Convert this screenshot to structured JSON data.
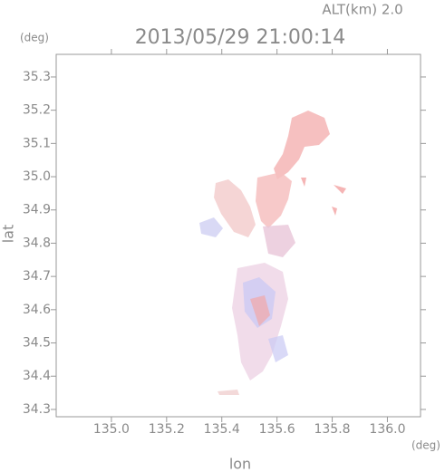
{
  "chart_data": {
    "type": "image",
    "title": "2013/05/29 21:00:14",
    "subtitle": "ALT(km) 2.0",
    "x_label": "lon",
    "x_unit": "(deg)",
    "y_label": "lat",
    "y_unit": "(deg)",
    "xlim": [
      134.8,
      136.12
    ],
    "ylim": [
      34.278,
      35.368
    ],
    "xticks": [
      {
        "value": 135,
        "label": "135.0"
      },
      135.2,
      135.4,
      135.6,
      135.8,
      {
        "value": 136,
        "label": "136.0"
      }
    ],
    "yticks": [
      35.3,
      35.2,
      35.1,
      {
        "value": 35,
        "label": "35.0"
      },
      34.9,
      34.8,
      34.7,
      34.6,
      34.5,
      34.4,
      34.3
    ]
  }
}
